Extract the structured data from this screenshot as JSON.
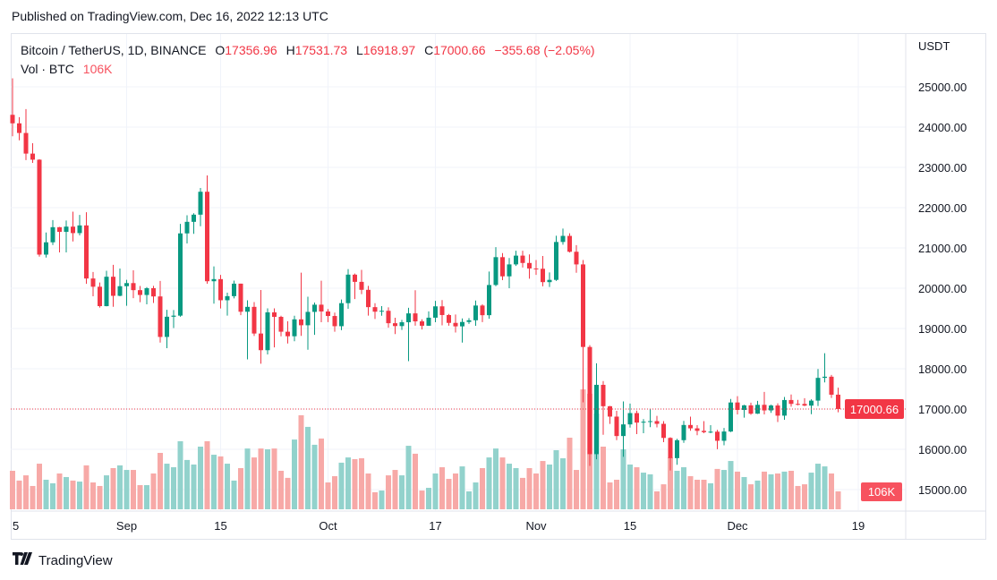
{
  "published": "Published on TradingView.com, Dec 16, 2022 12:13 UTC",
  "legend": {
    "symbol": "Bitcoin / TetherUS, 1D, BINANCE",
    "o_label": "O",
    "o": "17356.96",
    "h_label": "H",
    "h": "17531.73",
    "l_label": "L",
    "l": "16918.97",
    "c_label": "C",
    "c": "17000.66",
    "change": "−355.68 (−2.05%)",
    "vol_label": "Vol · BTC",
    "vol": "106K"
  },
  "footer": {
    "logo_text": "TradingView"
  },
  "colors": {
    "up": "#089981",
    "down": "#f23645",
    "up_vol": "#92d2cc",
    "down_vol": "#f7a9a7",
    "grid": "#f0f3fa"
  },
  "chart_data": {
    "type": "candlestick",
    "title": "Bitcoin / TetherUS, 1D, BINANCE",
    "ylabel": "USDT",
    "ylim": [
      14500,
      26300
    ],
    "y_ticks": [
      "25000.00",
      "24000.00",
      "23000.00",
      "22000.00",
      "21000.00",
      "20000.00",
      "19000.00",
      "18000.00",
      "17000.00",
      "16000.00",
      "15000.00"
    ],
    "x_ticks": [
      {
        "label": "15",
        "index": 0
      },
      {
        "label": "Sep",
        "index": 17
      },
      {
        "label": "15",
        "index": 31
      },
      {
        "label": "Oct",
        "index": 47
      },
      {
        "label": "17",
        "index": 63
      },
      {
        "label": "Nov",
        "index": 78
      },
      {
        "label": "15",
        "index": 92
      },
      {
        "label": "Dec",
        "index": 108
      },
      {
        "label": "19",
        "index": 126
      }
    ],
    "last_price_label": "17000.66",
    "last_price": 17000.66,
    "last_volume_label": "106K",
    "volume_unit": "K BTC",
    "columns": [
      "date",
      "open",
      "high",
      "low",
      "close",
      "volume_k"
    ],
    "candles": [
      [
        "2022-08-15",
        24305,
        25211,
        23773,
        24094,
        228
      ],
      [
        "2022-08-16",
        24094,
        24247,
        23671,
        23854,
        170
      ],
      [
        "2022-08-17",
        23854,
        24446,
        23180,
        23342,
        201
      ],
      [
        "2022-08-18",
        23342,
        23600,
        23111,
        23191,
        138
      ],
      [
        "2022-08-19",
        23191,
        23203,
        20783,
        20834,
        270
      ],
      [
        "2022-08-20",
        20834,
        21382,
        20761,
        21140,
        175
      ],
      [
        "2022-08-21",
        21140,
        21692,
        21071,
        21515,
        154
      ],
      [
        "2022-08-22",
        21515,
        21522,
        20890,
        21399,
        212
      ],
      [
        "2022-08-23",
        21399,
        21680,
        20890,
        21529,
        191
      ],
      [
        "2022-08-24",
        21529,
        21900,
        21161,
        21368,
        170
      ],
      [
        "2022-08-25",
        21368,
        21819,
        21310,
        21559,
        164
      ],
      [
        "2022-08-26",
        21559,
        21886,
        20107,
        20241,
        260
      ],
      [
        "2022-08-27",
        20241,
        20402,
        19800,
        20037,
        159
      ],
      [
        "2022-08-28",
        20037,
        20141,
        19520,
        19555,
        138
      ],
      [
        "2022-08-29",
        19555,
        20433,
        19550,
        20285,
        201
      ],
      [
        "2022-08-30",
        20285,
        20580,
        19540,
        19811,
        244
      ],
      [
        "2022-08-31",
        19811,
        20490,
        19800,
        20050,
        260
      ],
      [
        "2022-09-01",
        20050,
        20208,
        19565,
        20127,
        233
      ],
      [
        "2022-09-02",
        20127,
        20444,
        19753,
        19952,
        233
      ],
      [
        "2022-09-03",
        19952,
        20055,
        19652,
        19832,
        143
      ],
      [
        "2022-09-04",
        19832,
        20029,
        19600,
        20000,
        143
      ],
      [
        "2022-09-05",
        20000,
        20058,
        19633,
        19796,
        212
      ],
      [
        "2022-09-06",
        19796,
        20180,
        18650,
        18790,
        334
      ],
      [
        "2022-09-07",
        18790,
        19464,
        18510,
        19292,
        270
      ],
      [
        "2022-09-08",
        19292,
        19458,
        19012,
        19319,
        249
      ],
      [
        "2022-09-09",
        19319,
        21597,
        19291,
        21361,
        403
      ],
      [
        "2022-09-10",
        21361,
        21810,
        21111,
        21648,
        292
      ],
      [
        "2022-09-11",
        21648,
        21860,
        21350,
        21826,
        265
      ],
      [
        "2022-09-12",
        21826,
        22488,
        21538,
        22395,
        371
      ],
      [
        "2022-09-13",
        22395,
        22799,
        20111,
        20173,
        403
      ],
      [
        "2022-09-14",
        20173,
        20541,
        19618,
        20226,
        323
      ],
      [
        "2022-09-15",
        20226,
        20330,
        19497,
        19701,
        313
      ],
      [
        "2022-09-16",
        19701,
        19888,
        19320,
        19803,
        270
      ],
      [
        "2022-09-17",
        19803,
        20190,
        19748,
        20113,
        170
      ],
      [
        "2022-09-18",
        20113,
        20113,
        19330,
        19416,
        244
      ],
      [
        "2022-09-19",
        19416,
        19700,
        18233,
        19537,
        360
      ],
      [
        "2022-09-20",
        19537,
        19656,
        18814,
        18875,
        307
      ],
      [
        "2022-09-21",
        18875,
        19956,
        18125,
        18461,
        360
      ],
      [
        "2022-09-22",
        18461,
        19500,
        18356,
        19401,
        355
      ],
      [
        "2022-09-23",
        19401,
        19500,
        18531,
        19289,
        360
      ],
      [
        "2022-09-24",
        19289,
        19316,
        18805,
        18920,
        228
      ],
      [
        "2022-09-25",
        18920,
        19180,
        18629,
        18807,
        186
      ],
      [
        "2022-09-26",
        18807,
        19316,
        18683,
        19227,
        413
      ],
      [
        "2022-09-27",
        19227,
        20385,
        18816,
        19080,
        557
      ],
      [
        "2022-09-28",
        19080,
        19790,
        18471,
        19412,
        488
      ],
      [
        "2022-09-29",
        19412,
        19645,
        18843,
        19591,
        382
      ],
      [
        "2022-09-30",
        19591,
        20185,
        19155,
        19422,
        419
      ],
      [
        "2022-10-01",
        19422,
        19484,
        19159,
        19310,
        159
      ],
      [
        "2022-10-02",
        19310,
        19395,
        18920,
        19057,
        196
      ],
      [
        "2022-10-03",
        19057,
        19719,
        18959,
        19629,
        276
      ],
      [
        "2022-10-04",
        19629,
        20475,
        19490,
        20337,
        307
      ],
      [
        "2022-10-05",
        20337,
        20365,
        19730,
        20158,
        297
      ],
      [
        "2022-10-06",
        20158,
        20456,
        19854,
        19960,
        302
      ],
      [
        "2022-10-07",
        19960,
        20057,
        19320,
        19530,
        212
      ],
      [
        "2022-10-08",
        19530,
        19628,
        19237,
        19417,
        101
      ],
      [
        "2022-10-09",
        19417,
        19556,
        19316,
        19439,
        111
      ],
      [
        "2022-10-10",
        19439,
        19525,
        19020,
        19131,
        201
      ],
      [
        "2022-10-11",
        19131,
        19268,
        18860,
        19060,
        233
      ],
      [
        "2022-10-12",
        19060,
        19214,
        18965,
        19155,
        201
      ],
      [
        "2022-10-13",
        19155,
        19513,
        18190,
        19375,
        376
      ],
      [
        "2022-10-14",
        19375,
        19951,
        19070,
        19177,
        329
      ],
      [
        "2022-10-15",
        19177,
        19227,
        18975,
        19068,
        111
      ],
      [
        "2022-10-16",
        19068,
        19424,
        19063,
        19268,
        127
      ],
      [
        "2022-10-17",
        19268,
        19686,
        19156,
        19550,
        212
      ],
      [
        "2022-10-18",
        19550,
        19706,
        19077,
        19334,
        249
      ],
      [
        "2022-10-19",
        19334,
        19360,
        19069,
        19139,
        180
      ],
      [
        "2022-10-20",
        19139,
        19347,
        18900,
        19053,
        212
      ],
      [
        "2022-10-21",
        19053,
        19250,
        18650,
        19162,
        254
      ],
      [
        "2022-10-22",
        19162,
        19257,
        19115,
        19204,
        106
      ],
      [
        "2022-10-23",
        19204,
        19695,
        19068,
        19570,
        159
      ],
      [
        "2022-10-24",
        19570,
        19601,
        19157,
        19330,
        244
      ],
      [
        "2022-10-25",
        19330,
        20415,
        19242,
        20080,
        307
      ],
      [
        "2022-10-26",
        20080,
        21020,
        20050,
        20771,
        360
      ],
      [
        "2022-10-27",
        20771,
        20872,
        20200,
        20295,
        307
      ],
      [
        "2022-10-28",
        20295,
        20750,
        20000,
        20591,
        270
      ],
      [
        "2022-10-29",
        20591,
        20931,
        20554,
        20809,
        244
      ],
      [
        "2022-10-30",
        20809,
        20931,
        20515,
        20627,
        186
      ],
      [
        "2022-10-31",
        20627,
        20840,
        20237,
        20490,
        244
      ],
      [
        "2022-11-01",
        20490,
        20700,
        20330,
        20483,
        212
      ],
      [
        "2022-11-02",
        20483,
        20800,
        20048,
        20151,
        286
      ],
      [
        "2022-11-03",
        20151,
        20393,
        20031,
        20207,
        265
      ],
      [
        "2022-11-04",
        20207,
        21302,
        20180,
        21148,
        350
      ],
      [
        "2022-11-05",
        21148,
        21480,
        21080,
        21299,
        302
      ],
      [
        "2022-11-06",
        21299,
        21365,
        20886,
        20905,
        424
      ],
      [
        "2022-11-07",
        20905,
        21069,
        20384,
        20591,
        233
      ],
      [
        "2022-11-08",
        20591,
        20700,
        17166,
        18541,
        710
      ],
      [
        "2022-11-09",
        18541,
        18587,
        15588,
        15880,
        684
      ],
      [
        "2022-11-10",
        15880,
        18136,
        15754,
        17601,
        567
      ],
      [
        "2022-11-11",
        17601,
        17695,
        16361,
        17070,
        371
      ],
      [
        "2022-11-12",
        17070,
        17077,
        16631,
        16812,
        159
      ],
      [
        "2022-11-13",
        16812,
        16955,
        16229,
        16330,
        175
      ],
      [
        "2022-11-14",
        16330,
        17190,
        15815,
        16619,
        355
      ],
      [
        "2022-11-15",
        16619,
        17135,
        16540,
        16900,
        265
      ],
      [
        "2022-11-16",
        16900,
        16960,
        16377,
        16663,
        249
      ],
      [
        "2022-11-17",
        16663,
        16750,
        16400,
        16685,
        217
      ],
      [
        "2022-11-18",
        16685,
        16995,
        16550,
        16700,
        207
      ],
      [
        "2022-11-19",
        16700,
        16830,
        16545,
        16633,
        106
      ],
      [
        "2022-11-20",
        16633,
        16700,
        16178,
        16283,
        148
      ],
      [
        "2022-11-21",
        16283,
        16300,
        15476,
        15781,
        307
      ],
      [
        "2022-11-22",
        15781,
        16260,
        15616,
        16227,
        228
      ],
      [
        "2022-11-23",
        16227,
        16706,
        16160,
        16604,
        249
      ],
      [
        "2022-11-24",
        16604,
        16812,
        16460,
        16521,
        196
      ],
      [
        "2022-11-25",
        16521,
        16600,
        16350,
        16459,
        175
      ],
      [
        "2022-11-26",
        16459,
        16700,
        16400,
        16426,
        175
      ],
      [
        "2022-11-27",
        16426,
        16600,
        16400,
        16438,
        154
      ],
      [
        "2022-11-28",
        16438,
        16482,
        16002,
        16212,
        239
      ],
      [
        "2022-11-29",
        16212,
        16530,
        16100,
        16442,
        233
      ],
      [
        "2022-11-30",
        16442,
        17249,
        16428,
        17163,
        286
      ],
      [
        "2022-12-01",
        17163,
        17320,
        16866,
        16978,
        223
      ],
      [
        "2022-12-02",
        16978,
        17105,
        16787,
        17092,
        191
      ],
      [
        "2022-12-03",
        17092,
        17159,
        16858,
        16885,
        148
      ],
      [
        "2022-12-04",
        16885,
        17202,
        16878,
        17105,
        170
      ],
      [
        "2022-12-05",
        17105,
        17425,
        16867,
        16966,
        223
      ],
      [
        "2022-12-06",
        16966,
        17107,
        16906,
        17088,
        207
      ],
      [
        "2022-12-07",
        17088,
        17142,
        16678,
        16836,
        212
      ],
      [
        "2022-12-08",
        16836,
        17299,
        16733,
        17224,
        223
      ],
      [
        "2022-12-09",
        17224,
        17360,
        17058,
        17128,
        228
      ],
      [
        "2022-12-10",
        17128,
        17227,
        17092,
        17127,
        138
      ],
      [
        "2022-12-11",
        17127,
        17270,
        17071,
        17085,
        148
      ],
      [
        "2022-12-12",
        17085,
        17241,
        16871,
        17209,
        217
      ],
      [
        "2022-12-13",
        17209,
        17994,
        17076,
        17774,
        270
      ],
      [
        "2022-12-14",
        17774,
        18387,
        17660,
        17803,
        254
      ],
      [
        "2022-12-15",
        17803,
        17847,
        17275,
        17356,
        212
      ],
      [
        "2022-12-16",
        17356.96,
        17531.73,
        16918.97,
        17000.66,
        106
      ]
    ]
  }
}
